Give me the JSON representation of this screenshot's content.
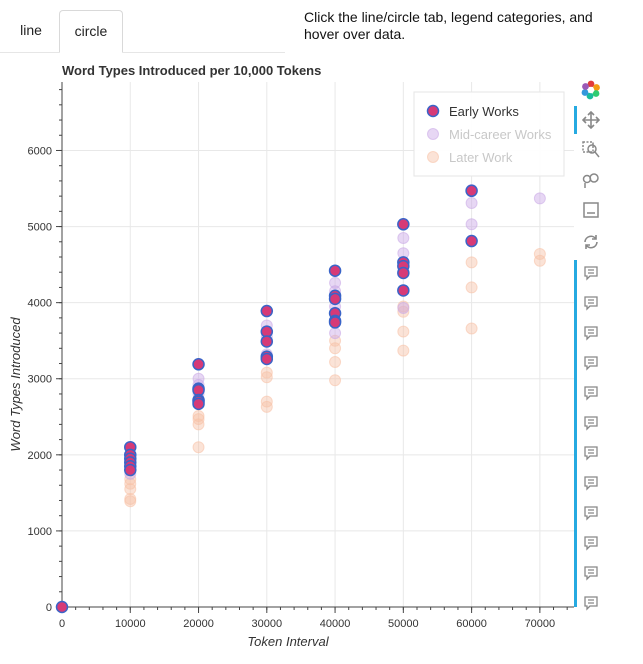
{
  "tabs": {
    "line_label": "line",
    "circle_label": "circle",
    "active": "circle"
  },
  "instructions": "Click the line/circle tab, legend categories, and hover over data.",
  "colors": {
    "early_fill": "#d63a77",
    "early_line": "#3a64c8",
    "mid": "#c9a7e6",
    "later": "#f7c1a6",
    "grid": "#e8e8e8",
    "axis": "#444444",
    "accent": "#26aae1"
  },
  "toolbar": {
    "icons": [
      "bokeh-logo-icon",
      "pan-icon",
      "box-zoom-icon",
      "wheel-zoom-icon",
      "save-icon",
      "reset-icon",
      "hover-icon",
      "hover-icon",
      "hover-icon",
      "hover-icon",
      "hover-icon",
      "hover-icon",
      "hover-icon",
      "hover-icon",
      "hover-icon",
      "hover-icon",
      "hover-icon",
      "hover-icon"
    ]
  },
  "chart_data": {
    "type": "scatter",
    "title": "Word Types Introduced per 10,000 Tokens",
    "xlabel": "Token Interval",
    "ylabel": "Word Types Introduced",
    "xlim": [
      0,
      75000
    ],
    "ylim": [
      0,
      6900
    ],
    "xticks": [
      0,
      10000,
      20000,
      30000,
      40000,
      50000,
      60000,
      70000
    ],
    "yticks": [
      0,
      1000,
      2000,
      3000,
      4000,
      5000,
      6000
    ],
    "grid": true,
    "legend_position": "top-right",
    "series": [
      {
        "name": "Early Works",
        "style": "active",
        "x": [
          0,
          10000,
          10000,
          10000,
          10000,
          10000,
          10000,
          20000,
          20000,
          20000,
          20000,
          20000,
          20000,
          30000,
          30000,
          30000,
          30000,
          30000,
          40000,
          40000,
          40000,
          40000,
          40000,
          40000,
          50000,
          50000,
          50000,
          50000,
          50000,
          60000,
          60000
        ],
        "y": [
          0,
          2100,
          2000,
          1950,
          1900,
          1850,
          1800,
          3190,
          2870,
          2850,
          2720,
          2700,
          2670,
          3890,
          3620,
          3490,
          3290,
          3260,
          4420,
          4090,
          4050,
          3860,
          3760,
          3740,
          5030,
          4530,
          4480,
          4390,
          4160,
          5470,
          4810
        ]
      },
      {
        "name": "Mid-career Works",
        "style": "muted",
        "x": [
          10000,
          10000,
          10000,
          20000,
          20000,
          20000,
          30000,
          30000,
          30000,
          40000,
          40000,
          40000,
          40000,
          50000,
          50000,
          50000,
          50000,
          60000,
          60000,
          60000,
          70000
        ],
        "y": [
          2000,
          1900,
          1750,
          3000,
          2920,
          2800,
          3700,
          3550,
          3320,
          4260,
          4150,
          3950,
          3600,
          4850,
          4650,
          4420,
          3930,
          5480,
          5310,
          5030,
          5370
        ]
      },
      {
        "name": "Later Work",
        "style": "muted",
        "x": [
          10000,
          10000,
          10000,
          10000,
          10000,
          20000,
          20000,
          20000,
          20000,
          30000,
          30000,
          30000,
          30000,
          30000,
          40000,
          40000,
          40000,
          40000,
          50000,
          50000,
          50000,
          50000,
          60000,
          60000,
          60000,
          70000,
          70000
        ],
        "y": [
          1680,
          1620,
          1550,
          1420,
          1390,
          2510,
          2470,
          2400,
          2100,
          3080,
          3020,
          2700,
          2630,
          3270,
          3500,
          3400,
          3220,
          2980,
          3950,
          3880,
          3620,
          3370,
          4530,
          4200,
          3660,
          4640,
          4550
        ]
      }
    ]
  }
}
